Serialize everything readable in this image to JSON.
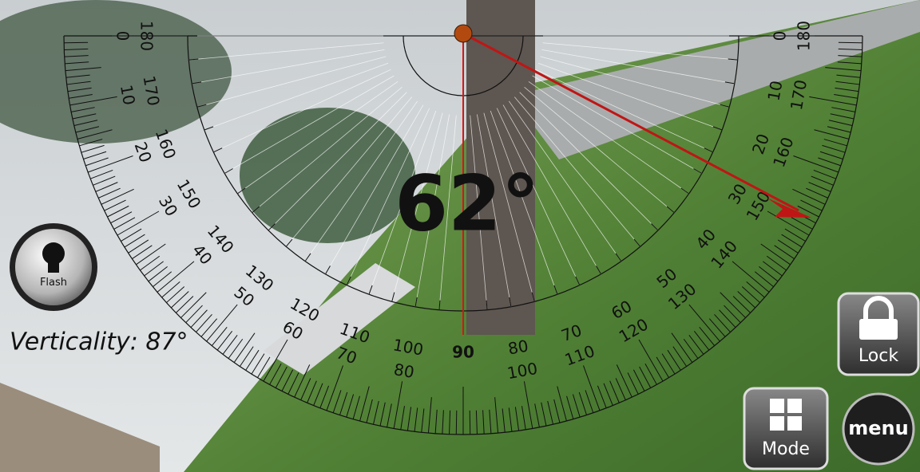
{
  "angle_reading": "62°",
  "verticality": "Verticality: 87°",
  "scale": {
    "outer_labels": [
      0,
      10,
      20,
      30,
      40,
      50,
      60,
      70,
      80,
      90,
      100,
      110,
      120,
      130,
      140,
      150,
      160,
      170,
      180
    ],
    "inner_labels": [
      180,
      170,
      160,
      150,
      140,
      130,
      120,
      110,
      100,
      80,
      70,
      60,
      50,
      40,
      30,
      20,
      10,
      0
    ]
  },
  "buttons": {
    "flash": "Flash",
    "lock": "Lock",
    "mode": "Mode",
    "menu": "menu"
  }
}
